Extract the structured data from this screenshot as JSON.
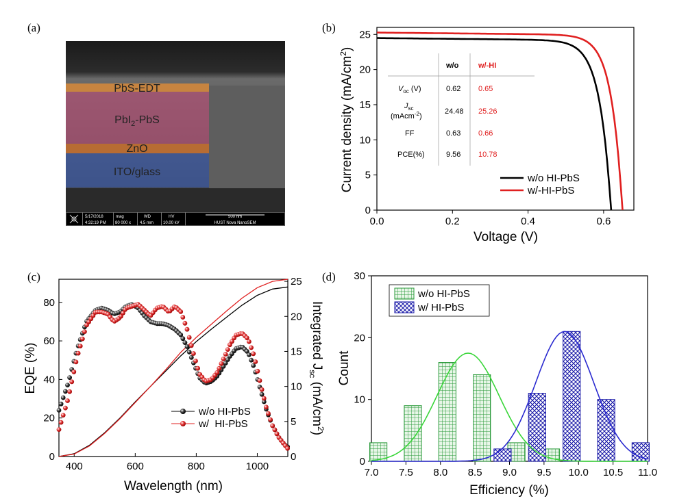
{
  "panels": {
    "a": "(a)",
    "b": "(b)",
    "c": "(c)",
    "d": "(d)"
  },
  "sem": {
    "layers": [
      "PbS-EDT",
      "PbI",
      "-PbS",
      "ZnO",
      "ITO/glass"
    ],
    "layer_sub": "2",
    "databar": {
      "date": "5/17/2018",
      "time": "4:32:19 PM",
      "mag_label": "mag",
      "mag": "80 000 x",
      "wd_label": "WD",
      "wd": "4.5 mm",
      "hv_label": "HV",
      "hv": "10.00 kV",
      "scale": "500 nm",
      "instrument": "HUST Nova NanoSEM"
    },
    "colors": {
      "edt": "#d88a3a",
      "pbs": "#c84a7a",
      "zno": "#d0722a",
      "ito": "#3a5aa8"
    }
  },
  "table": {
    "headers": [
      "w/o",
      "w/-HI"
    ],
    "rows": [
      {
        "label": "V",
        "sub": "oc",
        "unit": " (V)",
        "wo": "0.62",
        "w": "0.65"
      },
      {
        "label": "J",
        "sub": "sc",
        "unit2": "(mAcm",
        "sup2": "-2",
        "close": ")",
        "wo": "24.48",
        "w": "25.26"
      },
      {
        "label": "FF",
        "wo": "0.63",
        "w": "0.66"
      },
      {
        "label": "PCE(%)",
        "wo": "9.56",
        "w": "10.78"
      }
    ]
  },
  "chart_data": [
    {
      "panel": "b",
      "type": "line",
      "xlabel": "Voltage (V)",
      "ylabel": "Current density (mA/cm",
      "ylabel_sup": "2",
      "ylabel_close": ")",
      "xlim": [
        0.0,
        0.68
      ],
      "ylim": [
        0,
        26
      ],
      "xticks": [
        "0.0",
        "0.2",
        "0.4",
        "0.6"
      ],
      "yticks": [
        "0",
        "5",
        "10",
        "15",
        "20",
        "25"
      ],
      "legend_position": "bottom-right",
      "series": [
        {
          "name": "w/o HI-PbS",
          "color": "#000000",
          "jsc": 24.48,
          "voc": 0.62,
          "ff": 0.63
        },
        {
          "name": "w/-HI-PbS",
          "color": "#e02020",
          "jsc": 25.26,
          "voc": 0.65,
          "ff": 0.66
        }
      ]
    },
    {
      "panel": "c",
      "type": "line",
      "xlabel": "Wavelength (nm)",
      "ylabel": "EQE (%)",
      "y2label_pre": "Integrated J",
      "y2label_sub": "sc",
      "y2label_post": " (mA/cm",
      "y2label_sup": "2",
      "y2label_close": ")",
      "xlim": [
        350,
        1100
      ],
      "ylim": [
        0,
        92
      ],
      "y2lim": [
        0,
        25.3
      ],
      "xticks": [
        "400",
        "600",
        "800",
        "1000"
      ],
      "yticks": [
        "0",
        "20",
        "40",
        "60",
        "80"
      ],
      "y2ticks": [
        "0",
        "5",
        "10",
        "15",
        "20",
        "25"
      ],
      "legend_position": "bottom-right",
      "series": [
        {
          "name": "w/o HI-PbS",
          "color": "#000000",
          "x": [
            350,
            380,
            410,
            440,
            470,
            490,
            510,
            530,
            550,
            570,
            590,
            610,
            630,
            650,
            670,
            690,
            710,
            730,
            750,
            770,
            790,
            810,
            830,
            850,
            870,
            890,
            910,
            930,
            950,
            970,
            990,
            1010,
            1030,
            1050,
            1070,
            1090,
            1100
          ],
          "y": [
            24,
            38,
            56,
            70,
            76,
            77,
            76,
            74,
            75,
            78,
            79,
            77,
            73,
            70,
            69,
            69,
            68,
            66,
            63,
            57,
            49,
            41,
            38,
            39,
            42,
            47,
            52,
            56,
            57,
            54,
            46,
            35,
            24,
            16,
            10,
            6,
            5
          ],
          "jsc_x": [
            350,
            400,
            450,
            500,
            550,
            600,
            650,
            700,
            750,
            800,
            850,
            900,
            950,
            1000,
            1050,
            1100
          ],
          "jsc_y": [
            0,
            0.4,
            1.6,
            3.4,
            5.5,
            7.8,
            10.0,
            12.2,
            14.4,
            16.4,
            18.2,
            19.9,
            21.6,
            23.0,
            23.9,
            24.2
          ]
        },
        {
          "name": "w/  HI-PbS",
          "color": "#e02020",
          "x": [
            350,
            380,
            410,
            440,
            470,
            490,
            510,
            530,
            550,
            570,
            590,
            610,
            630,
            650,
            670,
            690,
            710,
            730,
            750,
            770,
            790,
            810,
            830,
            850,
            870,
            890,
            910,
            930,
            950,
            970,
            990,
            1010,
            1030,
            1050,
            1070,
            1090,
            1100
          ],
          "y": [
            14,
            30,
            52,
            68,
            75,
            75,
            74,
            70,
            72,
            77,
            78,
            79,
            76,
            73,
            77,
            78,
            75,
            78,
            75,
            66,
            54,
            43,
            39,
            40,
            44,
            51,
            58,
            63,
            64,
            61,
            52,
            38,
            25,
            16,
            10,
            6,
            4
          ],
          "jsc_x": [
            350,
            400,
            450,
            500,
            550,
            600,
            650,
            700,
            750,
            800,
            850,
            900,
            950,
            1000,
            1050,
            1100
          ],
          "jsc_y": [
            0,
            0.35,
            1.5,
            3.3,
            5.4,
            7.7,
            10.0,
            12.4,
            14.9,
            17.0,
            18.9,
            20.8,
            22.6,
            24.1,
            25.0,
            25.3
          ]
        }
      ]
    },
    {
      "panel": "d",
      "type": "bar",
      "xlabel": "Efficiency (%)",
      "ylabel": "Count",
      "xlim": [
        7.0,
        11.0
      ],
      "ylim": [
        0,
        30
      ],
      "xticks": [
        "7.0",
        "7.5",
        "8.0",
        "8.5",
        "9.0",
        "9.5",
        "10.0",
        "10.5",
        "11.0"
      ],
      "yticks": [
        "0",
        "10",
        "20",
        "30"
      ],
      "legend_position": "top-left",
      "series": [
        {
          "name": "w/o HI-PbS",
          "color": "#2a9a3a",
          "fit_color": "#3ad63a",
          "bins": [
            7.1,
            7.6,
            8.1,
            8.6,
            9.1,
            9.6
          ],
          "counts": [
            3,
            9,
            16,
            14,
            3,
            2
          ],
          "fit_mean": 8.4,
          "fit_sigma": 0.45,
          "fit_amp": 17.5
        },
        {
          "name": "w/ HI-PbS",
          "color": "#1a1aa8",
          "fit_color": "#2a2ad0",
          "bins": [
            8.9,
            9.4,
            9.9,
            10.4,
            10.9
          ],
          "counts": [
            2,
            11,
            21,
            10,
            3
          ],
          "fit_mean": 9.8,
          "fit_sigma": 0.42,
          "fit_amp": 21
        }
      ]
    }
  ]
}
